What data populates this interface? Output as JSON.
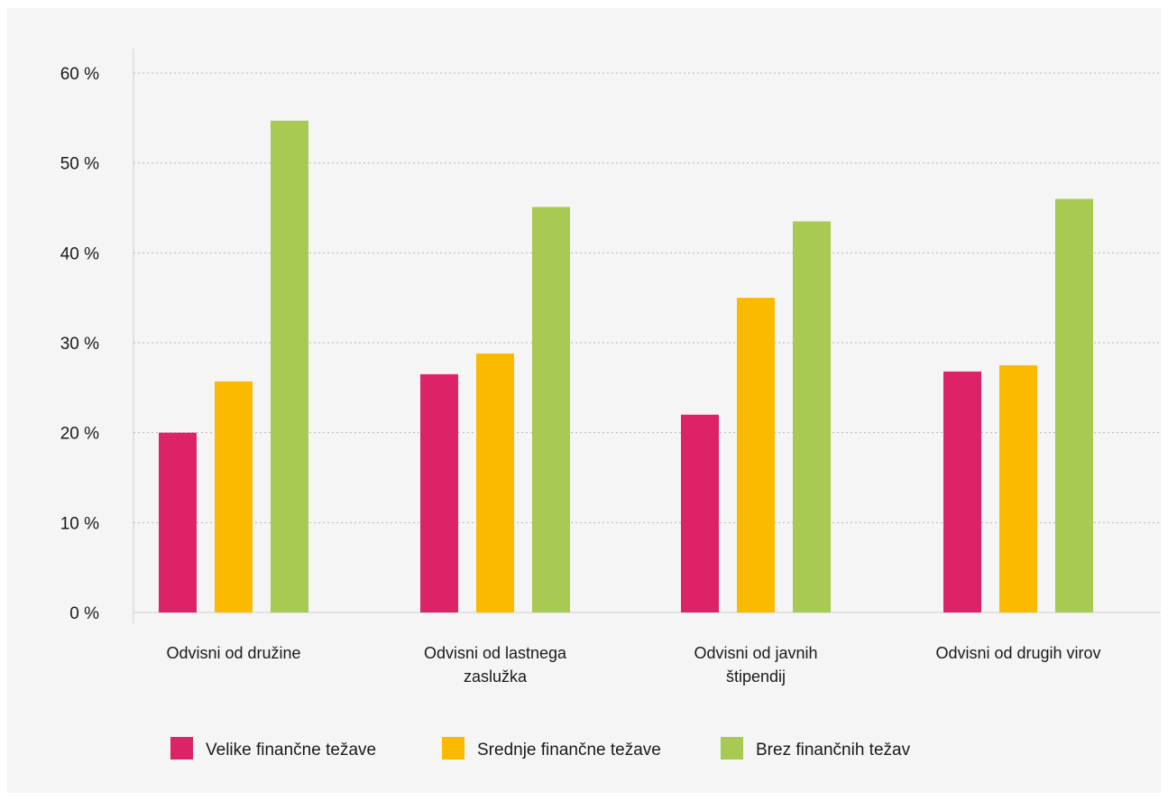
{
  "chart_data": {
    "type": "bar",
    "title": "",
    "xlabel": "",
    "ylabel": "",
    "ylim": [
      0,
      60
    ],
    "yticks": [
      "0 %",
      "10 %",
      "20 %",
      "30 %",
      "40 %",
      "50 %",
      "60 %"
    ],
    "grid": true,
    "legend_position": "bottom",
    "categories": [
      [
        "Odvisni od družine"
      ],
      [
        "Odvisni od lastnega",
        "zaslužka"
      ],
      [
        "Odvisni od javnih",
        "štipendij"
      ],
      [
        "Odvisni od drugih virov"
      ]
    ],
    "series": [
      {
        "name": "Velike finančne težave",
        "color": "#dc2367",
        "values": [
          20,
          26.5,
          22,
          26.8
        ]
      },
      {
        "name": "Srednje finančne težave",
        "color": "#fbb900",
        "values": [
          25.7,
          28.8,
          35,
          27.5
        ]
      },
      {
        "name": "Brez finančnih težav",
        "color": "#a8c952",
        "values": [
          54.7,
          45.1,
          43.5,
          46
        ]
      }
    ]
  }
}
